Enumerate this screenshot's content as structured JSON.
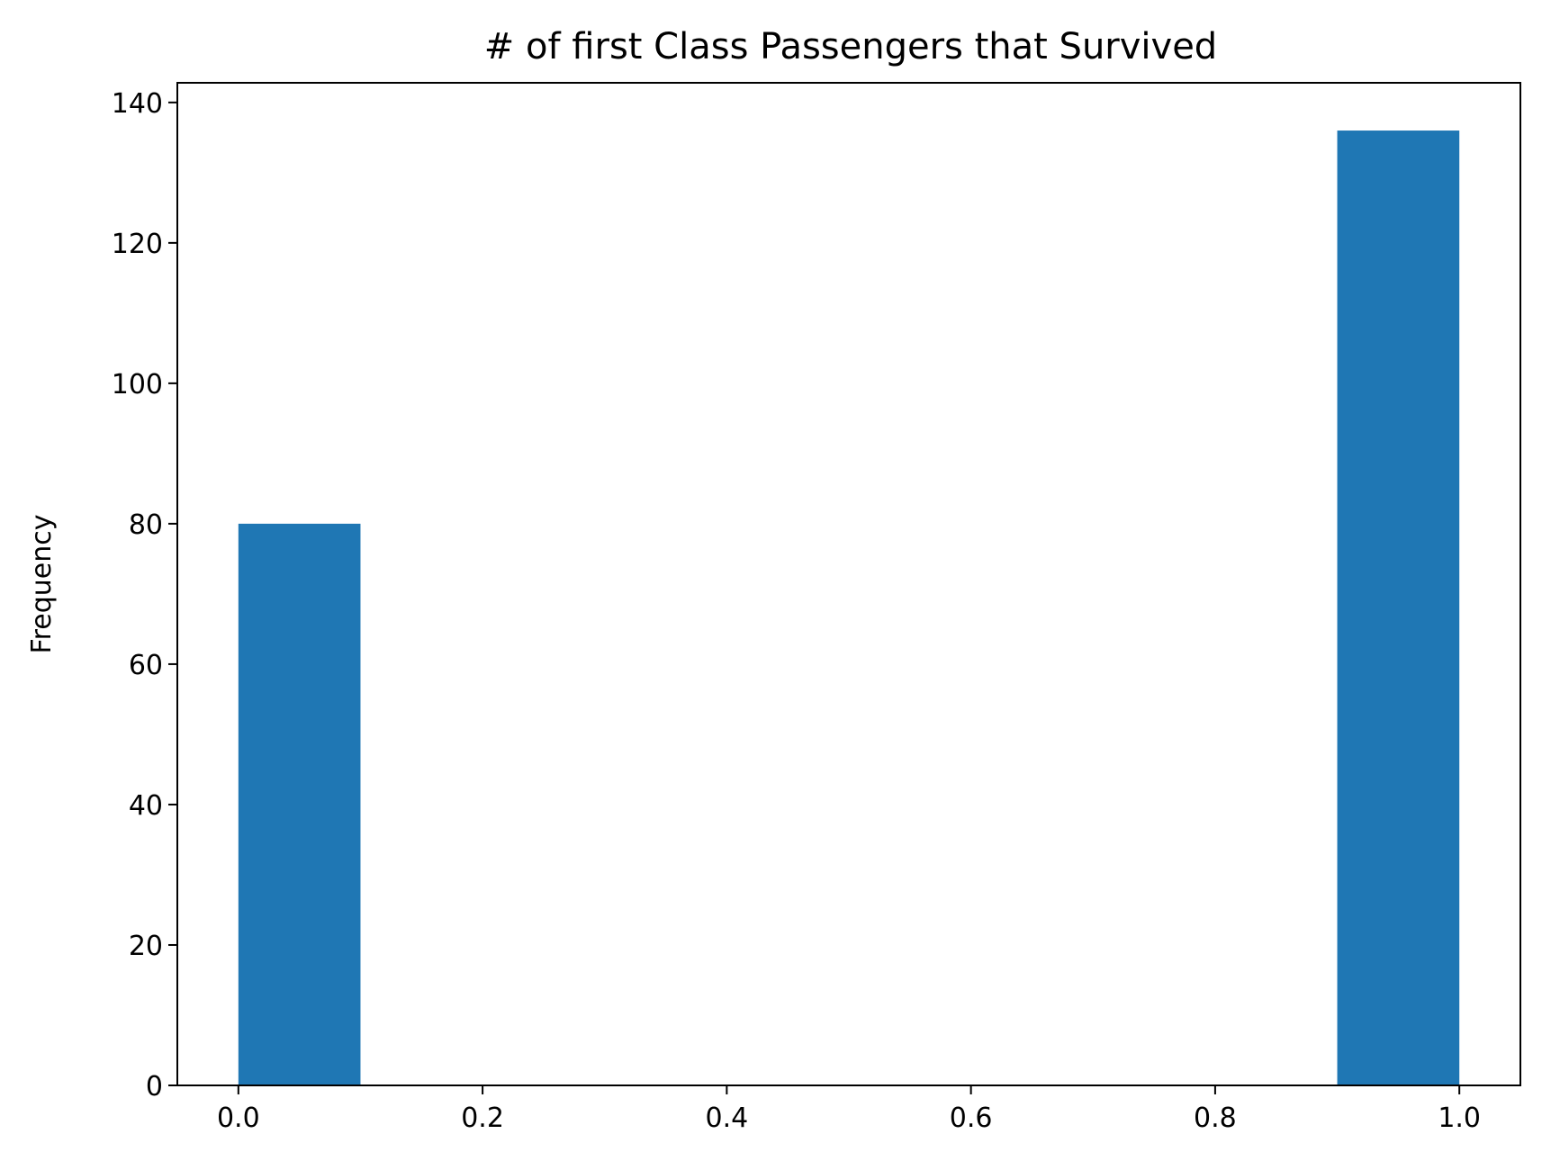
{
  "chart_data": {
    "type": "bar",
    "title": "# of first Class Passengers that Survived",
    "xlabel": "",
    "ylabel": "Frequency",
    "xlim": [
      -0.05,
      1.05
    ],
    "ylim": [
      0,
      142.8
    ],
    "grid": false,
    "bins": [
      {
        "x_start": 0.0,
        "x_end": 0.1,
        "value": 80
      },
      {
        "x_start": 0.1,
        "x_end": 0.2,
        "value": 0
      },
      {
        "x_start": 0.2,
        "x_end": 0.3,
        "value": 0
      },
      {
        "x_start": 0.3,
        "x_end": 0.4,
        "value": 0
      },
      {
        "x_start": 0.4,
        "x_end": 0.5,
        "value": 0
      },
      {
        "x_start": 0.5,
        "x_end": 0.6,
        "value": 0
      },
      {
        "x_start": 0.6,
        "x_end": 0.7,
        "value": 0
      },
      {
        "x_start": 0.7,
        "x_end": 0.8,
        "value": 0
      },
      {
        "x_start": 0.8,
        "x_end": 0.9,
        "value": 0
      },
      {
        "x_start": 0.9,
        "x_end": 1.0,
        "value": 136
      }
    ],
    "x_ticks": [
      {
        "value": 0.0,
        "label": "0.0"
      },
      {
        "value": 0.2,
        "label": "0.2"
      },
      {
        "value": 0.4,
        "label": "0.4"
      },
      {
        "value": 0.6,
        "label": "0.6"
      },
      {
        "value": 0.8,
        "label": "0.8"
      },
      {
        "value": 1.0,
        "label": "1.0"
      }
    ],
    "y_ticks": [
      {
        "value": 0,
        "label": "0"
      },
      {
        "value": 20,
        "label": "20"
      },
      {
        "value": 40,
        "label": "40"
      },
      {
        "value": 60,
        "label": "60"
      },
      {
        "value": 80,
        "label": "80"
      },
      {
        "value": 100,
        "label": "100"
      },
      {
        "value": 120,
        "label": "120"
      },
      {
        "value": 140,
        "label": "140"
      }
    ],
    "colors": {
      "bar": "#1f77b4",
      "axis": "#000000",
      "background": "#ffffff"
    }
  }
}
